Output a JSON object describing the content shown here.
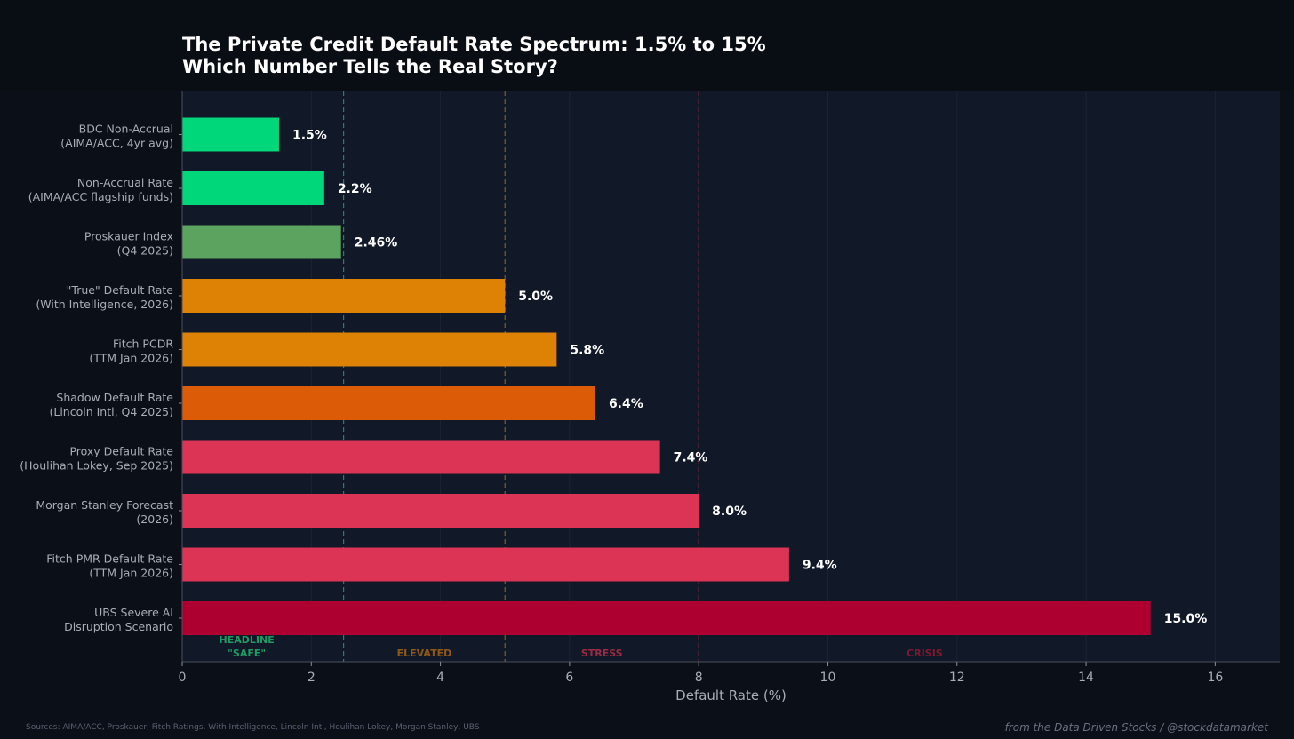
{
  "chart_data": {
    "type": "bar",
    "orientation": "horizontal",
    "title": [
      "The Private Credit Default Rate Spectrum: 1.5% to 15%",
      "Which Number Tells the Real Story?"
    ],
    "xlabel": "Default Rate (%)",
    "xlim": [
      0,
      17
    ],
    "xticks": [
      0,
      2,
      4,
      6,
      8,
      10,
      12,
      14,
      16
    ],
    "grid": "vertical",
    "bars": [
      {
        "label": [
          "BDC Non-Accrual",
          "(AIMA/ACC, 4yr avg)"
        ],
        "value": 1.5,
        "value_label": "1.5%",
        "color": "#00d67a"
      },
      {
        "label": [
          "Non-Accrual Rate",
          "(AIMA/ACC flagship funds)"
        ],
        "value": 2.2,
        "value_label": "2.2%",
        "color": "#00d67a"
      },
      {
        "label": [
          "Proskauer Index",
          "(Q4 2025)"
        ],
        "value": 2.46,
        "value_label": "2.46%",
        "color": "#5ca35f"
      },
      {
        "label": [
          "\"True\" Default Rate",
          "(With Intelligence, 2026)"
        ],
        "value": 5.0,
        "value_label": "5.0%",
        "color": "#dd8205"
      },
      {
        "label": [
          "Fitch PCDR",
          "(TTM Jan 2026)"
        ],
        "value": 5.8,
        "value_label": "5.8%",
        "color": "#dd8205"
      },
      {
        "label": [
          "Shadow Default Rate",
          "(Lincoln Intl, Q4 2025)"
        ],
        "value": 6.4,
        "value_label": "6.4%",
        "color": "#db5b07"
      },
      {
        "label": [
          "Proxy Default Rate",
          "(Houlihan Lokey, Sep 2025)"
        ],
        "value": 7.4,
        "value_label": "7.4%",
        "color": "#db3454"
      },
      {
        "label": [
          "Morgan Stanley Forecast",
          "(2026)"
        ],
        "value": 8.0,
        "value_label": "8.0%",
        "color": "#db3454"
      },
      {
        "label": [
          "Fitch PMR Default Rate",
          "(TTM Jan 2026)"
        ],
        "value": 9.4,
        "value_label": "9.4%",
        "color": "#db3454"
      },
      {
        "label": [
          "UBS Severe AI",
          "Disruption Scenario"
        ],
        "value": 15.0,
        "value_label": "15.0%",
        "color": "#ae0030"
      }
    ],
    "thresholds": [
      {
        "x": 2.5,
        "color": "#1f8a5a"
      },
      {
        "x": 5.0,
        "color": "#8a5a1f"
      },
      {
        "x": 8.0,
        "color": "#7a2a3a"
      }
    ],
    "zones": [
      {
        "label": [
          "HEADLINE",
          "\"SAFE\""
        ],
        "x": 1.0,
        "color": "#1f9a62"
      },
      {
        "label": [
          "ELEVATED"
        ],
        "x": 3.75,
        "color": "#8f5a18"
      },
      {
        "label": [
          "STRESS"
        ],
        "x": 6.5,
        "color": "#9a2c45"
      },
      {
        "label": [
          "CRISIS"
        ],
        "x": 11.5,
        "color": "#7e1a30"
      }
    ]
  },
  "footer": {
    "sources": "Sources: AIMA/ACC, Proskauer, Fitch Ratings, With Intelligence, Lincoln Intl, Houlihan Lokey, Morgan Stanley, UBS",
    "credit": "from the Data Driven Stocks / @stockdatamarket"
  }
}
